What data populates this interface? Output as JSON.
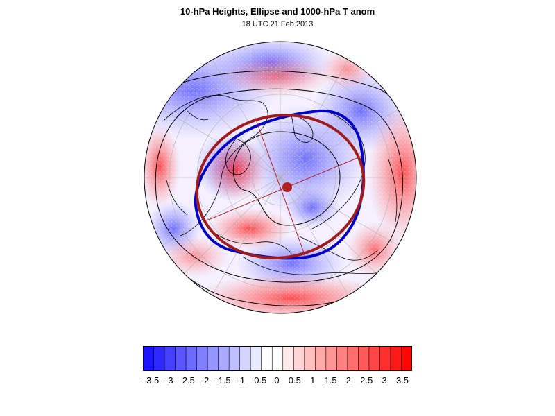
{
  "header": {
    "title": "10-hPa Heights, Ellipse and 1000-hPa T anom",
    "subtitle": "18 UTC 21 Feb 2013"
  },
  "map": {
    "projection": "polar-stereographic",
    "hemisphere": "northern"
  },
  "colorbar": {
    "labels": [
      "-3.5",
      "-3",
      "-2.5",
      "-2",
      "-1.5",
      "-1",
      "-0.5",
      "0",
      "0.5",
      "1",
      "1.5",
      "2",
      "2.5",
      "3",
      "3.5"
    ],
    "colors": [
      "#1a14ff",
      "#2e28ff",
      "#4540ff",
      "#5955ff",
      "#6d6aff",
      "#807fff",
      "#9595ff",
      "#a9a9ff",
      "#bfbfff",
      "#d4d4ff",
      "#e9e9ff",
      "#ffffff",
      "#ffffff",
      "#ffe9e9",
      "#ffd4d4",
      "#ffbfbf",
      "#ffa9a9",
      "#ff9595",
      "#ff8080",
      "#ff6d6d",
      "#ff5959",
      "#ff4545",
      "#ff2e2e",
      "#ff1a1a",
      "#ff0505"
    ]
  },
  "styles": {
    "ellipse_color": "#a01c1c",
    "height_contour_color": "#0000c8",
    "contour_color": "#000000",
    "cold_color": "#0000ff",
    "warm_color": "#ff0000"
  }
}
